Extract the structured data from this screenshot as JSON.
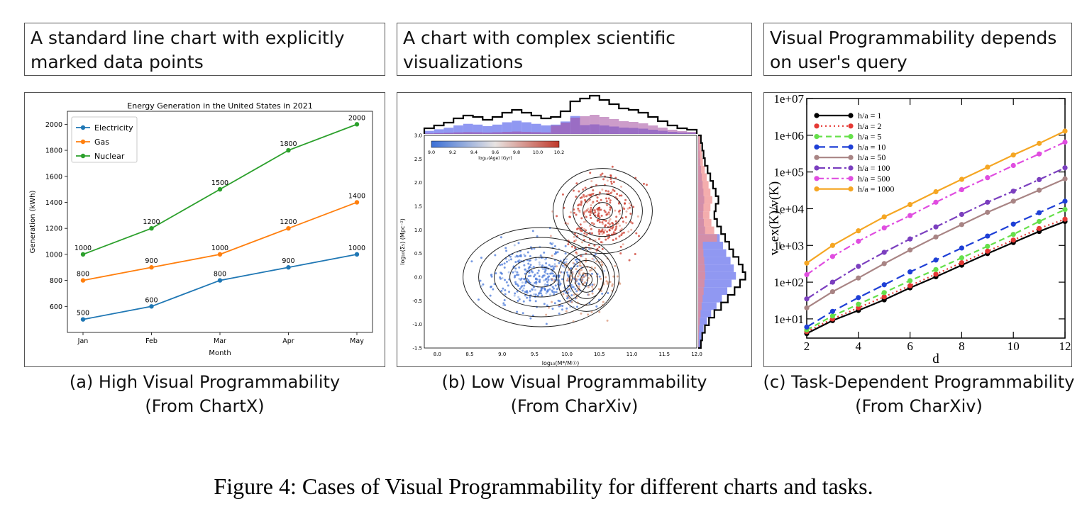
{
  "headers": {
    "a": "A standard line chart with explicitly marked data points",
    "b": "A chart with complex scientific visualizations",
    "c": "Visual Programmability depends on user's query"
  },
  "captions": {
    "a_line1": "(a) High Visual Programmability",
    "a_line2": "(From ChartX)",
    "b_line1": "(b) Low Visual Programmability",
    "b_line2": "(From CharXiv)",
    "c_line1": "(c) Task-Dependent Programmability",
    "c_line2": "(From CharXiv)"
  },
  "figure_caption": "Figure 4: Cases of Visual Programmability for different charts and tasks.",
  "chart_data": [
    {
      "id": "a",
      "type": "line",
      "title": "Energy Generation in the United States in 2021",
      "xlabel": "Month",
      "ylabel": "Generation (kWh)",
      "categories": [
        "Jan",
        "Feb",
        "Mar",
        "Apr",
        "May"
      ],
      "ylim": [
        400,
        2100
      ],
      "yticks": [
        600,
        800,
        1000,
        1200,
        1400,
        1600,
        1800,
        2000
      ],
      "legend": "top-left",
      "series": [
        {
          "name": "Electricity",
          "color": "#1f77b4",
          "values": [
            500,
            600,
            800,
            900,
            1000
          ]
        },
        {
          "name": "Gas",
          "color": "#ff7f0e",
          "values": [
            800,
            900,
            1000,
            1200,
            1400
          ]
        },
        {
          "name": "Nuclear",
          "color": "#2ca02c",
          "values": [
            1000,
            1200,
            1500,
            1800,
            2000
          ]
        }
      ]
    },
    {
      "id": "b",
      "type": "scatter",
      "xlabel": "log₁₀(M*/M☉)",
      "ylabel": "log₁₀(Σ₅) (Mpc⁻²)",
      "colorbar_label": "log₁₀(Age) (Gyr)",
      "xlim": [
        7.8,
        12.0
      ],
      "ylim": [
        -1.5,
        3.0
      ],
      "xticks": [
        "8.0",
        "8.5",
        "9.0",
        "9.5",
        "10.0",
        "10.5",
        "11.0",
        "11.5",
        "12.0"
      ],
      "yticks": [
        "-1.5",
        "-1.0",
        "-0.5",
        "0.0",
        "0.5",
        "1.0",
        "1.5",
        "2.0",
        "2.5",
        "3.0"
      ],
      "colorbar_ticks": [
        "9.0",
        "9.2",
        "9.4",
        "9.6",
        "9.8",
        "10.0",
        "10.2"
      ],
      "colors": {
        "young": "#3b6fd6",
        "old": "#c0392b"
      }
    },
    {
      "id": "c",
      "type": "line",
      "xlabel": "d",
      "ylabel": "v_ex(K)/v(K)",
      "x": [
        2,
        3,
        4,
        5,
        6,
        7,
        8,
        9,
        10,
        11,
        12
      ],
      "xlim": [
        2,
        12
      ],
      "xticks": [
        "2",
        "4",
        "6",
        "8",
        "10",
        "12"
      ],
      "yscale": "log",
      "ylim": [
        3,
        10000000
      ],
      "yticks": [
        "1e+01",
        "1e+02",
        "1e+03",
        "1e+04",
        "1e+05",
        "1e+06",
        "1e+07"
      ],
      "legend": "top-left",
      "series": [
        {
          "name": "h/a = 1",
          "color": "#000000",
          "dash": "",
          "values": [
            4,
            9,
            17,
            33,
            70,
            140,
            290,
            600,
            1200,
            2400,
            4500
          ]
        },
        {
          "name": "h/a = 2",
          "color": "#e53935",
          "dash": "2,4",
          "values": [
            4.5,
            10,
            20,
            40,
            80,
            165,
            340,
            700,
            1400,
            2900,
            5200
          ]
        },
        {
          "name": "h/a = 5",
          "color": "#66e04a",
          "dash": "8,5",
          "values": [
            5,
            12,
            25,
            52,
            110,
            220,
            460,
            950,
            2000,
            4500,
            9500
          ]
        },
        {
          "name": "h/a = 10",
          "color": "#1e3fd6",
          "dash": "12,6",
          "values": [
            6,
            16,
            38,
            85,
            190,
            400,
            850,
            1800,
            3800,
            7800,
            16000
          ]
        },
        {
          "name": "h/a = 50",
          "color": "#a88484",
          "dash": "",
          "values": [
            20,
            55,
            130,
            320,
            750,
            1700,
            3700,
            8000,
            16000,
            32000,
            65000
          ]
        },
        {
          "name": "h/a = 100",
          "color": "#7b3fbf",
          "dash": "12,4,3,4",
          "values": [
            35,
            100,
            270,
            650,
            1500,
            3200,
            7000,
            15000,
            30000,
            62000,
            130000
          ]
        },
        {
          "name": "h/a = 500",
          "color": "#e04de0",
          "dash": "10,4,3,4",
          "values": [
            160,
            500,
            1300,
            3000,
            6500,
            15000,
            33000,
            70000,
            150000,
            310000,
            650000
          ]
        },
        {
          "name": "h/a = 1000",
          "color": "#f5a623",
          "dash": "",
          "values": [
            330,
            1000,
            2500,
            6000,
            13000,
            29000,
            63000,
            135000,
            290000,
            600000,
            1300000
          ]
        }
      ]
    }
  ]
}
